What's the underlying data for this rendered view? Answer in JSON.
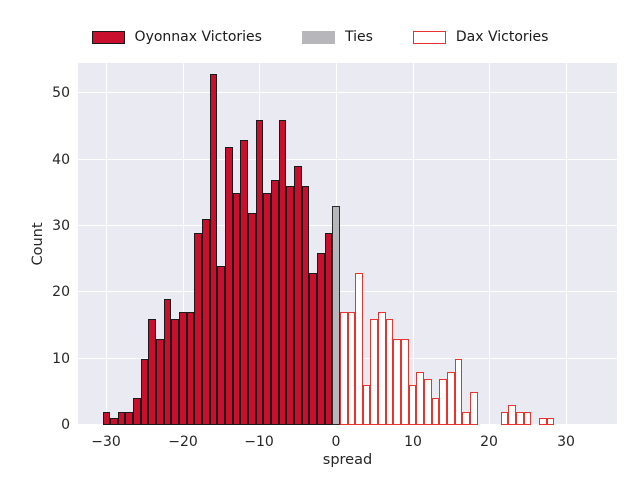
{
  "figure": {
    "background": "#ffffff"
  },
  "legend": {
    "items": [
      {
        "label": "Oyonnax Victories",
        "swatch_fill": "#c8102e",
        "swatch_edge": "#1a1a1a"
      },
      {
        "label": "Ties",
        "swatch_fill": "#b7b7bb",
        "swatch_edge": "#b7b7bb"
      },
      {
        "label": "Dax Victories",
        "swatch_fill": "#ffffff",
        "swatch_edge": "#e8332e"
      }
    ]
  },
  "chart_data": {
    "type": "bar",
    "subtype": "histogram",
    "title": "",
    "xlabel": "spread",
    "ylabel": "Count",
    "xlim": [
      -33.7,
      36.7
    ],
    "ylim": [
      0,
      54.6
    ],
    "bin_width": 1,
    "grid": true,
    "plot_background": "#eaeaf2",
    "grid_color": "#ffffff",
    "xticks": {
      "values": [
        -30,
        -20,
        -10,
        0,
        10,
        20,
        30
      ],
      "labels": [
        "−30",
        "−20",
        "−10",
        "0",
        "10",
        "20",
        "30"
      ]
    },
    "yticks": {
      "values": [
        0,
        10,
        20,
        30,
        40,
        50
      ],
      "labels": [
        "0",
        "10",
        "20",
        "30",
        "40",
        "50"
      ]
    },
    "series": [
      {
        "name": "Oyonnax Victories",
        "slug": "oyonnax-victories",
        "fill": "#c8102e",
        "edge": "#1a1a1a",
        "x": [
          -30,
          -29,
          -28,
          -27,
          -26,
          -25,
          -24,
          -23,
          -22,
          -21,
          -20,
          -19,
          -18,
          -17,
          -16,
          -15,
          -14,
          -13,
          -12,
          -11,
          -10,
          -9,
          -8,
          -7,
          -6,
          -5,
          -4,
          -3,
          -2,
          -1
        ],
        "counts": [
          2,
          1,
          2,
          2,
          4,
          10,
          16,
          13,
          19,
          16,
          17,
          17,
          29,
          31,
          53,
          24,
          42,
          35,
          43,
          32,
          46,
          35,
          37,
          46,
          36,
          39,
          36,
          23,
          26,
          29
        ]
      },
      {
        "name": "Ties",
        "slug": "ties",
        "fill": "#b7b7bb",
        "edge": "#2b2b2b",
        "x": [
          0
        ],
        "counts": [
          33
        ]
      },
      {
        "name": "Dax Victories",
        "slug": "dax-victories",
        "fill": "#ffffff",
        "edge": "#e8332e",
        "x": [
          1,
          2,
          3,
          4,
          5,
          6,
          7,
          8,
          9,
          10,
          11,
          12,
          13,
          14,
          15,
          16,
          17,
          18,
          19,
          20,
          21,
          22,
          23,
          24,
          25,
          26,
          27,
          28
        ],
        "counts": [
          17,
          17,
          23,
          6,
          16,
          17,
          16,
          13,
          13,
          6,
          8,
          7,
          4,
          7,
          8,
          10,
          2,
          5,
          0,
          0,
          0,
          2,
          3,
          2,
          2,
          0,
          1,
          1
        ]
      }
    ]
  }
}
